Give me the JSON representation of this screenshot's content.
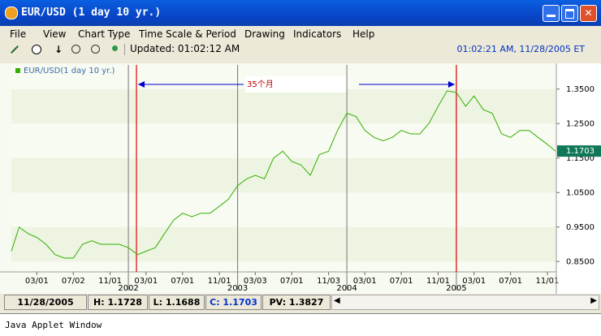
{
  "window": {
    "title": "EUR/USD  (1 day  10 yr.)"
  },
  "menu": [
    "File",
    "View",
    "Chart Type",
    "Time Scale & Period",
    "Drawing",
    "Indicators",
    "Help"
  ],
  "toolbar": {
    "updated": "Updated: 01:02:12 AM",
    "clock": "01:02:21 AM, 11/28/2005 ET"
  },
  "chart_data": {
    "type": "line",
    "x": [
      "2000-12-06",
      "2001-01-01",
      "2001-02-01",
      "2001-03-01",
      "2001-04-01",
      "2001-05-01",
      "2001-06-01",
      "2001-07-01",
      "2001-08-01",
      "2001-09-01",
      "2001-10-01",
      "2001-11-01",
      "2001-12-01",
      "2002-01-01",
      "2002-02-01",
      "2002-03-01",
      "2002-04-01",
      "2002-05-01",
      "2002-06-01",
      "2002-07-01",
      "2002-08-01",
      "2002-09-01",
      "2002-10-01",
      "2002-11-01",
      "2002-12-01",
      "2003-01-01",
      "2003-02-01",
      "2003-03-01",
      "2003-04-01",
      "2003-05-01",
      "2003-06-01",
      "2003-07-01",
      "2003-08-01",
      "2003-09-01",
      "2003-10-01",
      "2003-11-01",
      "2003-12-01",
      "2004-01-01",
      "2004-02-01",
      "2004-03-01",
      "2004-04-01",
      "2004-05-01",
      "2004-06-01",
      "2004-07-01",
      "2004-08-01",
      "2004-09-01",
      "2004-10-01",
      "2004-11-01",
      "2004-12-01",
      "2005-01-01",
      "2005-02-01",
      "2005-03-01",
      "2005-04-01",
      "2005-05-01",
      "2005-06-01",
      "2005-07-01",
      "2005-08-01",
      "2005-09-01",
      "2005-10-01",
      "2005-11-01",
      "2005-11-28"
    ],
    "series": [
      {
        "name": "EUR/USD(1 day  10 yr.)",
        "color": "#33b000",
        "values": [
          0.88,
          0.95,
          0.93,
          0.92,
          0.9,
          0.87,
          0.86,
          0.86,
          0.9,
          0.91,
          0.9,
          0.9,
          0.9,
          0.89,
          0.87,
          0.88,
          0.89,
          0.93,
          0.97,
          0.99,
          0.98,
          0.99,
          0.99,
          1.01,
          1.03,
          1.07,
          1.09,
          1.1,
          1.09,
          1.15,
          1.17,
          1.14,
          1.13,
          1.1,
          1.16,
          1.17,
          1.23,
          1.28,
          1.27,
          1.23,
          1.21,
          1.2,
          1.21,
          1.23,
          1.22,
          1.22,
          1.25,
          1.3,
          1.345,
          1.34,
          1.3,
          1.33,
          1.29,
          1.28,
          1.22,
          1.21,
          1.23,
          1.23,
          1.21,
          1.19,
          1.1703
        ]
      }
    ],
    "xlim": [
      "2000-12-06",
      "2005-12-01"
    ],
    "ylim": [
      0.82,
      1.42
    ],
    "yticks": [
      {
        "value": 0.85,
        "label": "0.8500"
      },
      {
        "value": 0.95,
        "label": "0.9500"
      },
      {
        "value": 1.05,
        "label": "1.0500"
      },
      {
        "value": 1.15,
        "label": "1.1500"
      },
      {
        "value": 1.25,
        "label": "1.2500"
      },
      {
        "value": 1.35,
        "label": "1.3500"
      }
    ],
    "xticks": [
      {
        "value": "2001-03-01",
        "label": "03/01"
      },
      {
        "value": "2001-07-01",
        "label": "07/02"
      },
      {
        "value": "2001-11-01",
        "label": "11/01"
      },
      {
        "value": "2002-03-01",
        "label": "03/01"
      },
      {
        "value": "2002-07-01",
        "label": "07/01"
      },
      {
        "value": "2002-11-01",
        "label": "11/01"
      },
      {
        "value": "2003-03-01",
        "label": "03/03"
      },
      {
        "value": "2003-07-01",
        "label": "07/01"
      },
      {
        "value": "2003-11-01",
        "label": "11/03"
      },
      {
        "value": "2004-03-01",
        "label": "03/01"
      },
      {
        "value": "2004-07-01",
        "label": "07/01"
      },
      {
        "value": "2004-11-01",
        "label": "11/01"
      },
      {
        "value": "2005-03-01",
        "label": "03/01"
      },
      {
        "value": "2005-07-01",
        "label": "07/01"
      },
      {
        "value": "2005-11-01",
        "label": "11/01"
      }
    ],
    "year_ticks": [
      {
        "value": "2002-01-01",
        "label": "2002"
      },
      {
        "value": "2003-01-01",
        "label": "2003"
      },
      {
        "value": "2004-01-01",
        "label": "2004"
      },
      {
        "value": "2005-01-01",
        "label": "2005"
      }
    ],
    "markers": [
      {
        "x": "2002-01-28",
        "color": "#e00000"
      },
      {
        "x": "2005-01-01",
        "color": "#e00000"
      }
    ],
    "annotation": {
      "text": "35个月",
      "color": "#0000cc"
    }
  },
  "status": [
    "11/28/2005",
    "H: 1.1728",
    "L: 1.1688",
    "C: 1.1703",
    "PV: 1.3827"
  ],
  "footer": "Java Applet Window"
}
